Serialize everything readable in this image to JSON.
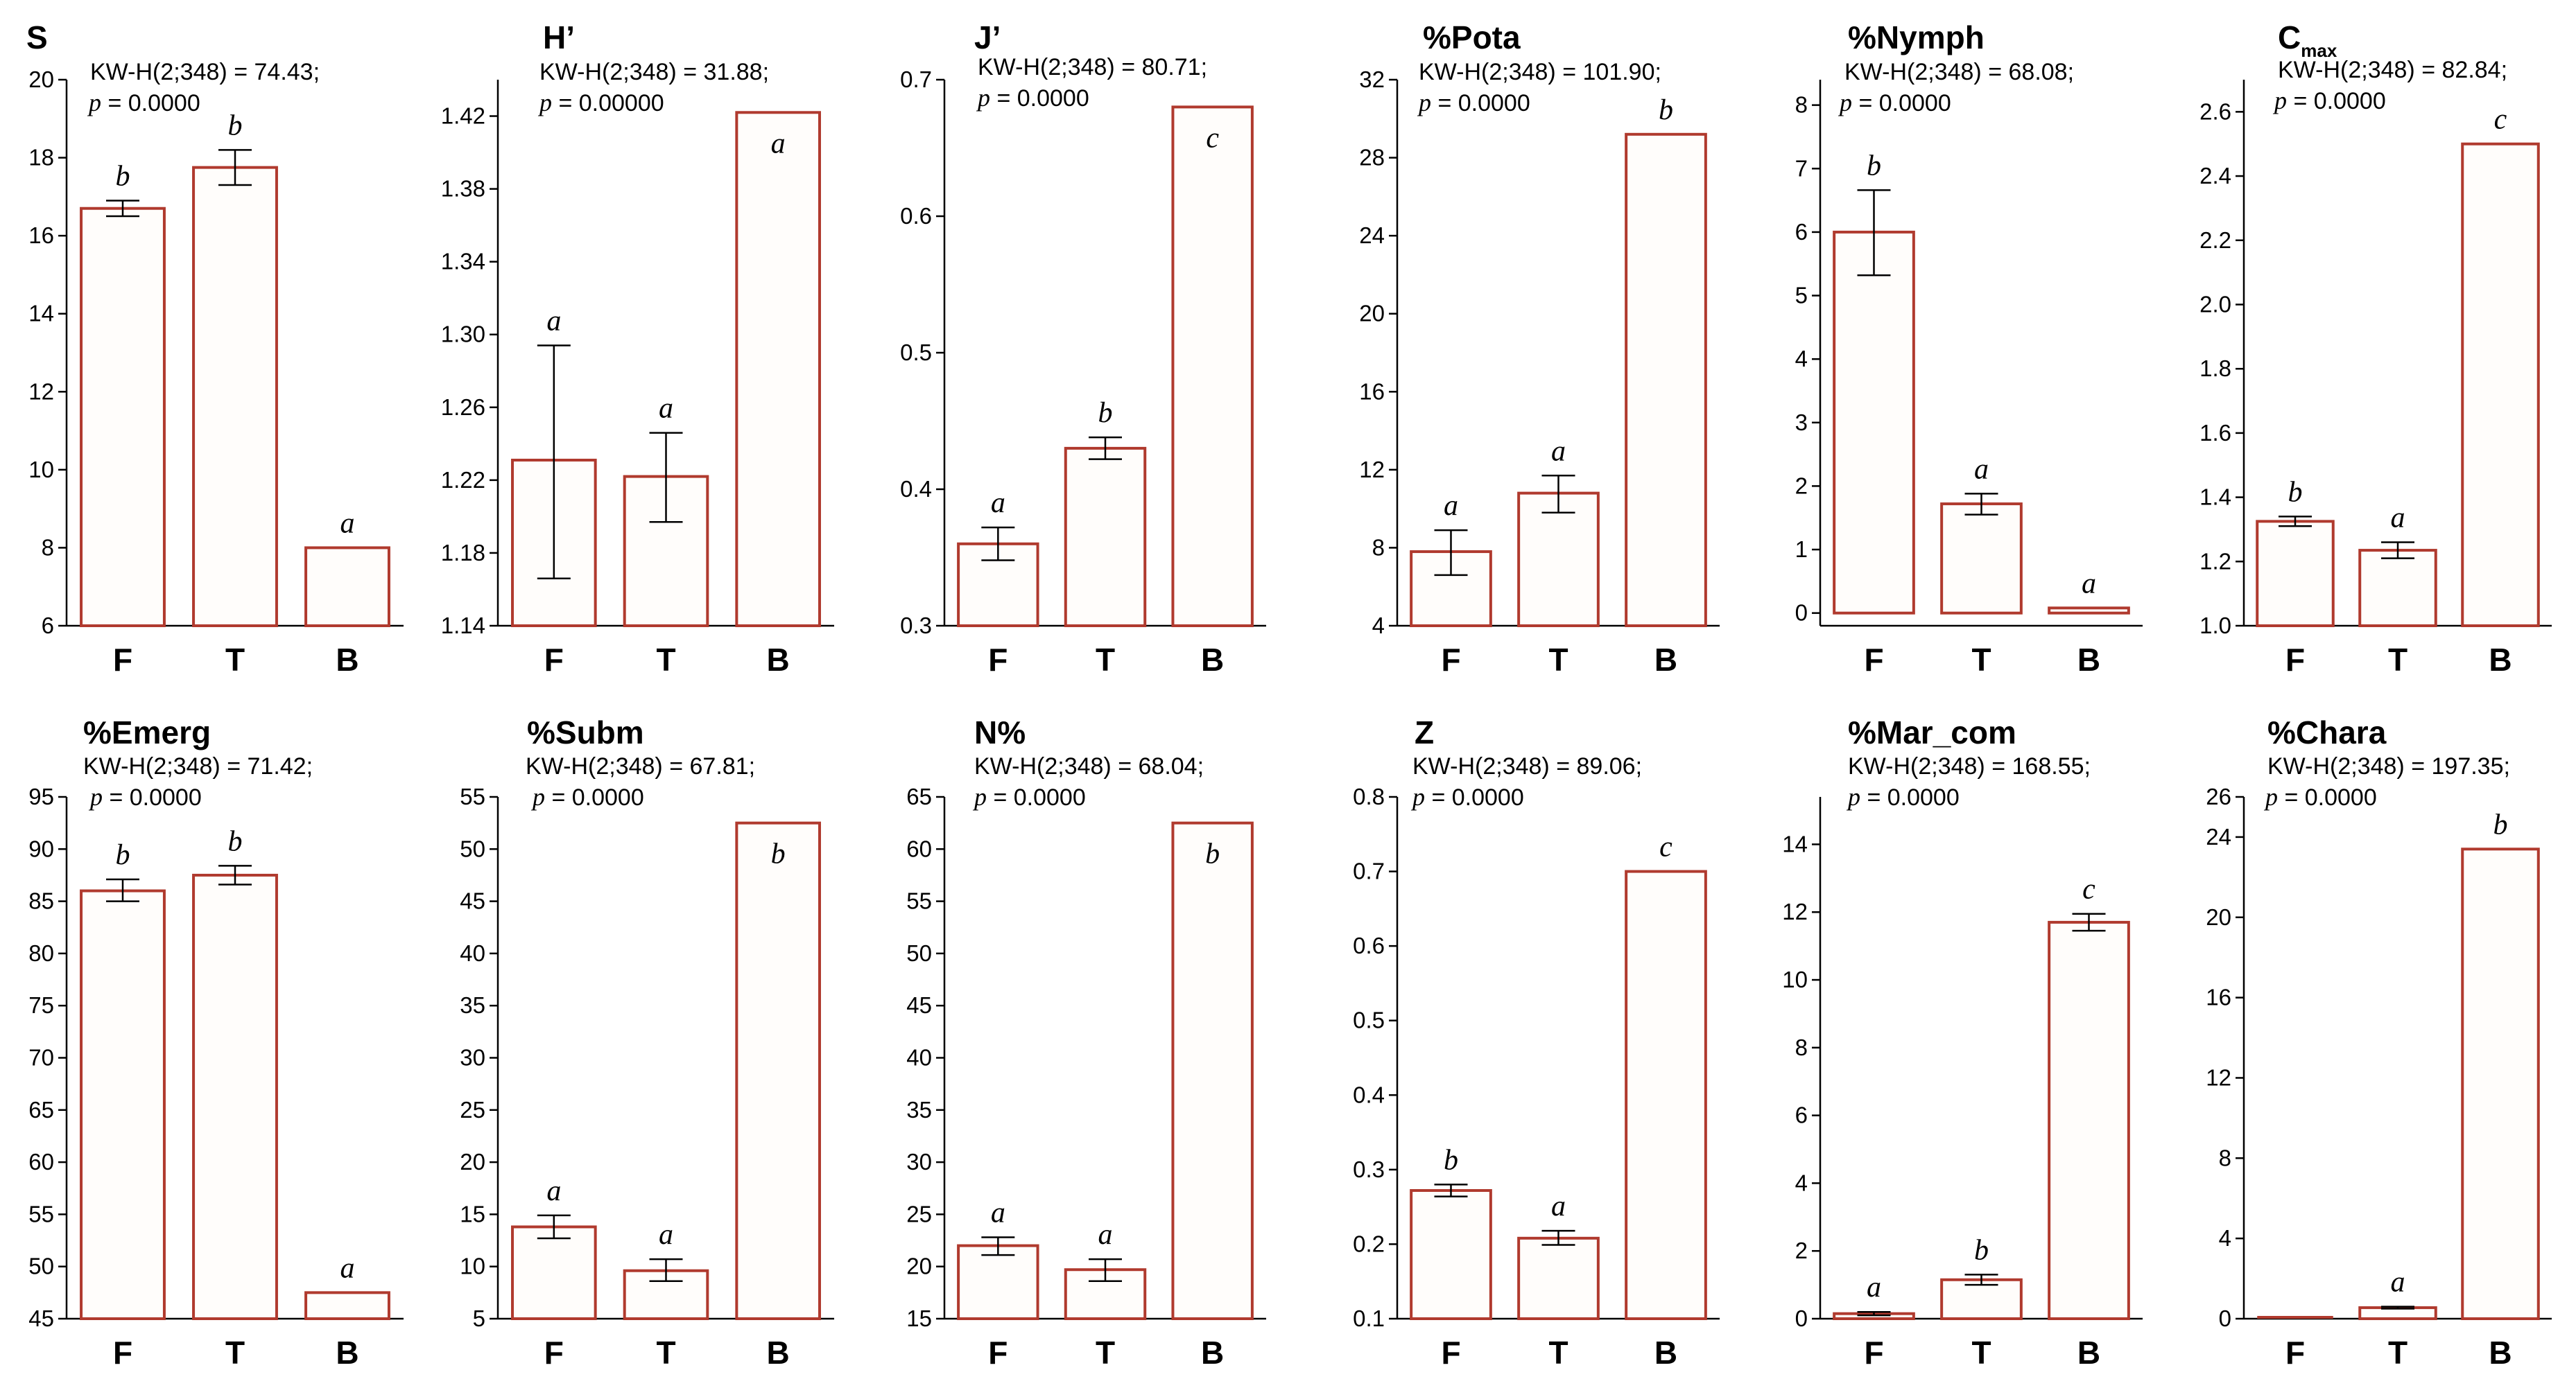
{
  "colors": {
    "bar_edge": "#b03a2e",
    "bar_fill": "#fffdfb",
    "axis": "#000000"
  },
  "chart_data": [
    {
      "type": "bar",
      "title": "S",
      "stat_line": "KW-H(2;348) = 74.43;",
      "p_symbol": "p",
      "p_rest": " = 0.0000",
      "categories": [
        "F",
        "T",
        "B"
      ],
      "values": [
        16.7,
        17.75,
        8.0
      ],
      "error_low": [
        16.5,
        17.3,
        8.0
      ],
      "error_high": [
        16.9,
        18.2,
        8.0
      ],
      "significance": [
        "b",
        "b",
        "a"
      ],
      "ylim": [
        6,
        20
      ],
      "ticks": [
        6,
        8,
        10,
        12,
        14,
        16,
        18,
        20
      ],
      "tick_labels": [
        "6",
        "8",
        "10",
        "12",
        "14",
        "16",
        "18",
        "20"
      ]
    },
    {
      "type": "bar",
      "title": "H’",
      "stat_line": "KW-H(2;348) = 31.88;",
      "p_symbol": "p",
      "p_rest": " = 0.00000",
      "categories": [
        "F",
        "T",
        "B"
      ],
      "values": [
        1.231,
        1.222,
        1.422
      ],
      "error_low": [
        1.166,
        1.197,
        1.422
      ],
      "error_high": [
        1.294,
        1.246,
        1.422
      ],
      "significance": [
        "a",
        "a",
        "a"
      ],
      "ylim": [
        1.14,
        1.44
      ],
      "ticks": [
        1.14,
        1.18,
        1.22,
        1.26,
        1.3,
        1.34,
        1.38,
        1.42
      ],
      "tick_labels": [
        "1.14",
        "1.18",
        "1.22",
        "1.26",
        "1.30",
        "1.34",
        "1.38",
        "1.42"
      ]
    },
    {
      "type": "bar",
      "title": "J’",
      "stat_line": "KW-H(2;348) = 80.71;",
      "p_symbol": "p",
      "p_rest": " = 0.0000",
      "categories": [
        "F",
        "T",
        "B"
      ],
      "values": [
        0.36,
        0.43,
        0.68
      ],
      "error_low": [
        0.348,
        0.422,
        0.68
      ],
      "error_high": [
        0.372,
        0.438,
        0.68
      ],
      "significance": [
        "a",
        "b",
        "c"
      ],
      "ylim": [
        0.3,
        0.7
      ],
      "ticks": [
        0.3,
        0.4,
        0.5,
        0.6,
        0.7
      ],
      "tick_labels": [
        "0.3",
        "0.4",
        "0.5",
        "0.6",
        "0.7"
      ]
    },
    {
      "type": "bar",
      "title": "%Pota",
      "stat_line": "KW-H(2;348) = 101.90;",
      "p_symbol": "p",
      "p_rest": " = 0.0000",
      "categories": [
        "F",
        "T",
        "B"
      ],
      "values": [
        7.8,
        10.8,
        29.2
      ],
      "error_low": [
        6.6,
        9.8,
        29.2
      ],
      "error_high": [
        8.9,
        11.7,
        29.2
      ],
      "significance": [
        "a",
        "a",
        "b"
      ],
      "ylim": [
        4,
        32
      ],
      "ticks": [
        4,
        8,
        12,
        16,
        20,
        24,
        28,
        32
      ],
      "tick_labels": [
        "4",
        "8",
        "12",
        "16",
        "20",
        "24",
        "28",
        "32"
      ]
    },
    {
      "type": "bar",
      "title": "%Nymph",
      "stat_line": "KW-H(2;348) = 68.08;",
      "p_symbol": "p",
      "p_rest": " = 0.0000",
      "categories": [
        "F",
        "T",
        "B"
      ],
      "values": [
        6.0,
        1.72,
        0.08
      ],
      "error_low": [
        5.32,
        1.55,
        0.08
      ],
      "error_high": [
        6.66,
        1.88,
        0.08
      ],
      "significance": [
        "b",
        "a",
        "a"
      ],
      "ylim": [
        -0.2,
        8.4
      ],
      "ticks": [
        0,
        1,
        2,
        3,
        4,
        5,
        6,
        7,
        8
      ],
      "tick_labels": [
        "0",
        "1",
        "2",
        "3",
        "4",
        "5",
        "6",
        "7",
        "8"
      ]
    },
    {
      "type": "bar",
      "title": "C",
      "title_subscript": "max",
      "stat_line": "KW-H(2;348) = 82.84;",
      "p_symbol": "p",
      "p_rest": " = 0.0000",
      "categories": [
        "F",
        "T",
        "B"
      ],
      "values": [
        1.325,
        1.235,
        2.5
      ],
      "error_low": [
        1.31,
        1.21,
        2.5
      ],
      "error_high": [
        1.34,
        1.26,
        2.5
      ],
      "significance": [
        "b",
        "a",
        "c"
      ],
      "ylim": [
        1.0,
        2.7
      ],
      "ticks": [
        1.0,
        1.2,
        1.4,
        1.6,
        1.8,
        2.0,
        2.2,
        2.4,
        2.6
      ],
      "tick_labels": [
        "1.0",
        "1.2",
        "1.4",
        "1.6",
        "1.8",
        "2.0",
        "2.2",
        "2.4",
        "2.6"
      ]
    },
    {
      "type": "bar",
      "title": "%Emerg",
      "stat_line": "KW-H(2;348) = 71.42;",
      "p_symbol": "p",
      "p_rest": " = 0.0000",
      "categories": [
        "F",
        "T",
        "B"
      ],
      "values": [
        86.0,
        87.5,
        47.5
      ],
      "error_low": [
        85.0,
        86.6,
        47.5
      ],
      "error_high": [
        87.1,
        88.4,
        47.5
      ],
      "significance": [
        "b",
        "b",
        "a"
      ],
      "ylim": [
        45,
        95
      ],
      "ticks": [
        45,
        50,
        55,
        60,
        65,
        70,
        75,
        80,
        85,
        90,
        95
      ],
      "tick_labels": [
        "45",
        "50",
        "55",
        "60",
        "65",
        "70",
        "75",
        "80",
        "85",
        "90",
        "95"
      ]
    },
    {
      "type": "bar",
      "title": "%Subm",
      "stat_line": "KW-H(2;348) = 67.81;",
      "p_symbol": "p",
      "p_rest": " = 0.0000",
      "categories": [
        "F",
        "T",
        "B"
      ],
      "values": [
        13.8,
        9.6,
        52.5
      ],
      "error_low": [
        12.7,
        8.6,
        52.5
      ],
      "error_high": [
        14.9,
        10.7,
        52.5
      ],
      "significance": [
        "a",
        "a",
        "b"
      ],
      "ylim": [
        5,
        55
      ],
      "ticks": [
        5,
        10,
        15,
        20,
        25,
        30,
        35,
        40,
        45,
        50,
        55
      ],
      "tick_labels": [
        "5",
        "10",
        "15",
        "20",
        "25",
        "30",
        "35",
        "40",
        "45",
        "50",
        "55"
      ]
    },
    {
      "type": "bar",
      "title": "N%",
      "stat_line": "KW-H(2;348) = 68.04;",
      "p_symbol": "p",
      "p_rest": " = 0.0000",
      "categories": [
        "F",
        "T",
        "B"
      ],
      "values": [
        22.0,
        19.7,
        62.5
      ],
      "error_low": [
        21.1,
        18.6,
        62.5
      ],
      "error_high": [
        22.8,
        20.7,
        62.5
      ],
      "significance": [
        "a",
        "a",
        "b"
      ],
      "ylim": [
        15,
        65
      ],
      "ticks": [
        15,
        20,
        25,
        30,
        35,
        40,
        45,
        50,
        55,
        60,
        65
      ],
      "tick_labels": [
        "15",
        "20",
        "25",
        "30",
        "35",
        "40",
        "45",
        "50",
        "55",
        "60",
        "65"
      ]
    },
    {
      "type": "bar",
      "title": "Z",
      "stat_line": "KW-H(2;348) = 89.06;",
      "p_symbol": "p",
      "p_rest": " = 0.0000",
      "categories": [
        "F",
        "T",
        "B"
      ],
      "values": [
        0.272,
        0.208,
        0.7
      ],
      "error_low": [
        0.264,
        0.199,
        0.7
      ],
      "error_high": [
        0.28,
        0.218,
        0.7
      ],
      "significance": [
        "b",
        "a",
        "c"
      ],
      "ylim": [
        0.1,
        0.8
      ],
      "ticks": [
        0.1,
        0.2,
        0.3,
        0.4,
        0.5,
        0.6,
        0.7,
        0.8
      ],
      "tick_labels": [
        "0.1",
        "0.2",
        "0.3",
        "0.4",
        "0.5",
        "0.6",
        "0.7",
        "0.8"
      ]
    },
    {
      "type": "bar",
      "title": "%Mar_com",
      "stat_line": "KW-H(2;348) = 168.55;",
      "p_symbol": "p",
      "p_rest": " = 0.0000",
      "categories": [
        "F",
        "T",
        "B"
      ],
      "values": [
        0.15,
        1.15,
        11.7
      ],
      "error_low": [
        0.1,
        1.0,
        11.45
      ],
      "error_high": [
        0.2,
        1.3,
        11.95
      ],
      "significance": [
        "a",
        "b",
        "c"
      ],
      "ylim": [
        0,
        15.4
      ],
      "ticks": [
        0,
        2,
        4,
        6,
        8,
        10,
        12,
        14
      ],
      "tick_labels": [
        "0",
        "2",
        "4",
        "6",
        "8",
        "10",
        "12",
        "14"
      ]
    },
    {
      "type": "bar",
      "title": "%Chara",
      "stat_line": "KW-H(2;348) = 197.35;",
      "p_symbol": "p",
      "p_rest": " = 0.0000",
      "categories": [
        "F",
        "T",
        "B"
      ],
      "values": [
        0.0,
        0.55,
        23.4
      ],
      "error_low": [
        0.0,
        0.5,
        23.4
      ],
      "error_high": [
        0.0,
        0.6,
        23.4
      ],
      "significance": [
        "",
        "a",
        "b"
      ],
      "ylim": [
        0,
        26
      ],
      "ticks": [
        0,
        4,
        8,
        12,
        16,
        20,
        24,
        26
      ],
      "tick_labels": [
        "0",
        "4",
        "8",
        "12",
        "16",
        "20",
        "24",
        "26"
      ]
    }
  ]
}
